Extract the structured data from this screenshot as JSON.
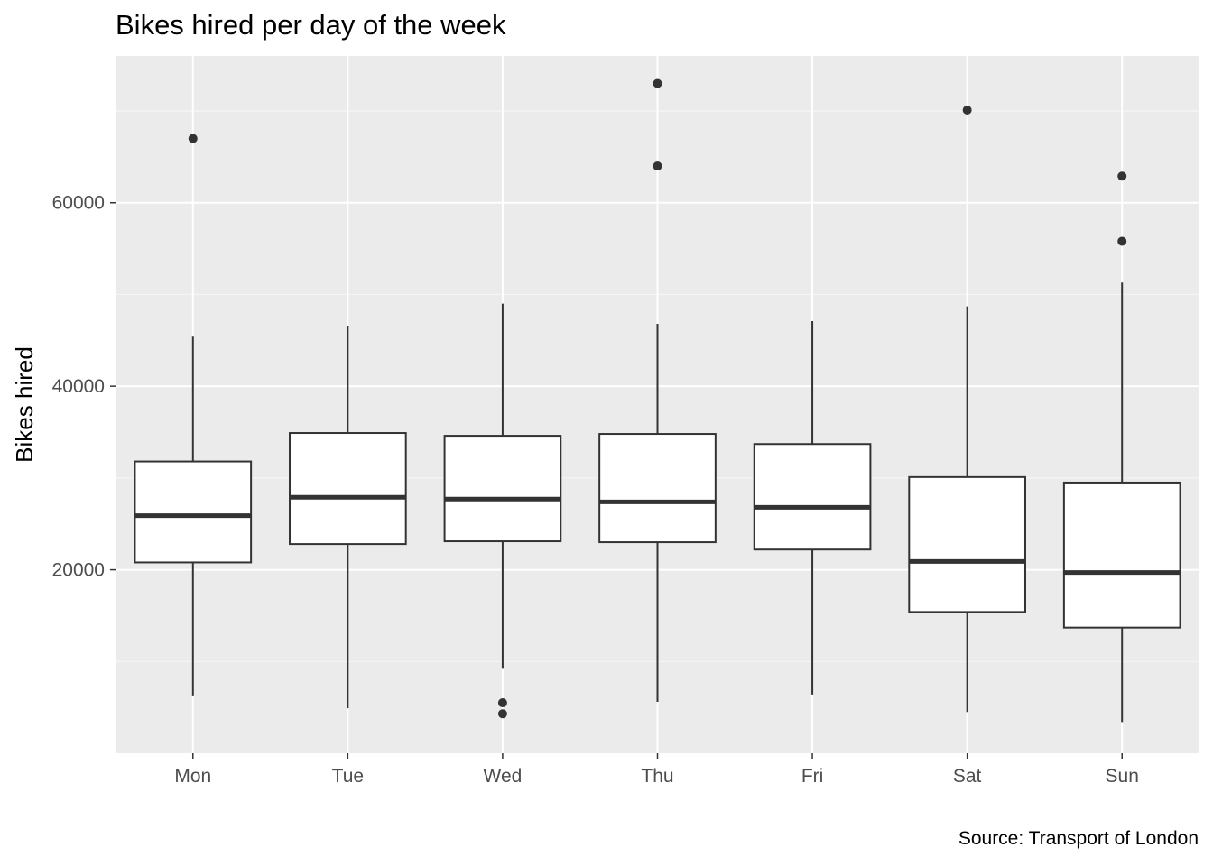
{
  "chart_data": {
    "type": "boxplot",
    "title": "Bikes hired per day of the week",
    "ylabel": "Bikes hired",
    "xlabel": "",
    "caption": "Source: Transport of London",
    "ylim": [
      0,
      76000
    ],
    "yticks": [
      20000,
      40000,
      60000
    ],
    "categories": [
      "Mon",
      "Tue",
      "Wed",
      "Thu",
      "Fri",
      "Sat",
      "Sun"
    ],
    "boxes": [
      {
        "category": "Mon",
        "lower_whisker": 6300,
        "q1": 20800,
        "median": 25900,
        "q3": 31800,
        "upper_whisker": 45400,
        "outliers": [
          67000
        ]
      },
      {
        "category": "Tue",
        "lower_whisker": 4900,
        "q1": 22800,
        "median": 27900,
        "q3": 34900,
        "upper_whisker": 46600,
        "outliers": []
      },
      {
        "category": "Wed",
        "lower_whisker": 9200,
        "q1": 23100,
        "median": 27700,
        "q3": 34600,
        "upper_whisker": 49000,
        "outliers": [
          5500,
          4300
        ]
      },
      {
        "category": "Thu",
        "lower_whisker": 5600,
        "q1": 23000,
        "median": 27400,
        "q3": 34800,
        "upper_whisker": 46800,
        "outliers": [
          73000,
          64000
        ]
      },
      {
        "category": "Fri",
        "lower_whisker": 6400,
        "q1": 22200,
        "median": 26800,
        "q3": 33700,
        "upper_whisker": 47100,
        "outliers": []
      },
      {
        "category": "Sat",
        "lower_whisker": 4500,
        "q1": 15400,
        "median": 20900,
        "q3": 30100,
        "upper_whisker": 48700,
        "outliers": [
          70100
        ]
      },
      {
        "category": "Sun",
        "lower_whisker": 3400,
        "q1": 13700,
        "median": 19700,
        "q3": 29500,
        "upper_whisker": 51300,
        "outliers": [
          62900,
          55800
        ]
      }
    ],
    "grid": true,
    "legend": "none",
    "colors": {
      "panel_bg": "#ebebeb",
      "grid_major": "#ffffff",
      "grid_minor": "#f5f5f5",
      "box_line": "#333333",
      "box_fill": "#ffffff",
      "tick_text": "#4d4d4d"
    }
  }
}
